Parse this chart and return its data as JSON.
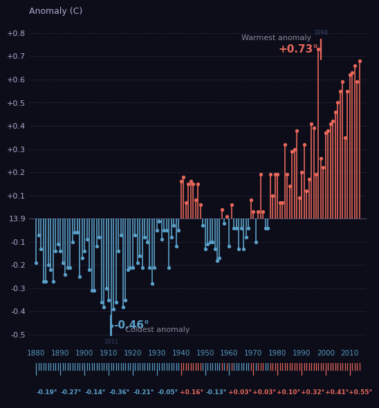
{
  "title": "Anomaly (C)",
  "background_color": "#1a1a2e",
  "plot_bg": "#0d0d1a",
  "years": [
    1880,
    1881,
    1882,
    1883,
    1884,
    1885,
    1886,
    1887,
    1888,
    1889,
    1890,
    1891,
    1892,
    1893,
    1894,
    1895,
    1896,
    1897,
    1898,
    1899,
    1900,
    1901,
    1902,
    1903,
    1904,
    1905,
    1906,
    1907,
    1908,
    1909,
    1910,
    1911,
    1912,
    1913,
    1914,
    1915,
    1916,
    1917,
    1918,
    1919,
    1920,
    1921,
    1922,
    1923,
    1924,
    1925,
    1926,
    1927,
    1928,
    1929,
    1930,
    1931,
    1932,
    1933,
    1934,
    1935,
    1936,
    1937,
    1938,
    1939,
    1940,
    1941,
    1942,
    1943,
    1944,
    1945,
    1946,
    1947,
    1948,
    1949,
    1950,
    1951,
    1952,
    1953,
    1954,
    1955,
    1956,
    1957,
    1958,
    1959,
    1960,
    1961,
    1962,
    1963,
    1964,
    1965,
    1966,
    1967,
    1968,
    1969,
    1970,
    1971,
    1972,
    1973,
    1974,
    1975,
    1976,
    1977,
    1978,
    1979,
    1980,
    1981,
    1982,
    1983,
    1984,
    1985,
    1986,
    1987,
    1988,
    1989,
    1990,
    1991,
    1992,
    1993,
    1994,
    1995,
    1996,
    1997,
    1998,
    1999,
    2000,
    2001,
    2002,
    2003,
    2004,
    2005,
    2006,
    2007,
    2008,
    2009,
    2010,
    2011,
    2012,
    2013,
    2014
  ],
  "anomalies": [
    -0.19,
    -0.07,
    -0.13,
    -0.27,
    -0.27,
    -0.2,
    -0.22,
    -0.27,
    -0.14,
    -0.11,
    -0.14,
    -0.19,
    -0.24,
    -0.21,
    -0.21,
    -0.1,
    -0.06,
    -0.06,
    -0.25,
    -0.17,
    -0.14,
    -0.09,
    -0.22,
    -0.31,
    -0.31,
    -0.12,
    -0.08,
    -0.36,
    -0.38,
    -0.3,
    -0.35,
    -0.46,
    -0.39,
    -0.36,
    -0.14,
    -0.07,
    -0.38,
    -0.35,
    -0.22,
    -0.21,
    -0.21,
    -0.07,
    -0.19,
    -0.16,
    -0.21,
    -0.08,
    -0.1,
    -0.21,
    -0.28,
    -0.21,
    -0.05,
    -0.01,
    -0.09,
    -0.05,
    -0.05,
    -0.21,
    -0.08,
    -0.03,
    -0.12,
    -0.05,
    0.16,
    0.18,
    0.07,
    0.15,
    0.16,
    0.15,
    0.08,
    0.15,
    0.06,
    -0.03,
    -0.13,
    -0.11,
    -0.1,
    -0.1,
    -0.13,
    -0.18,
    -0.17,
    0.04,
    -0.02,
    0.01,
    -0.12,
    0.06,
    -0.04,
    -0.04,
    -0.13,
    -0.04,
    -0.13,
    -0.08,
    -0.04,
    0.08,
    0.03,
    -0.1,
    0.03,
    0.19,
    0.03,
    -0.04,
    -0.04,
    0.19,
    0.1,
    0.19,
    0.19,
    0.07,
    0.07,
    0.32,
    0.19,
    0.14,
    0.29,
    0.3,
    0.38,
    0.09,
    0.2,
    0.32,
    0.12,
    0.17,
    0.41,
    0.39,
    0.19,
    0.73,
    0.26,
    0.22,
    0.37,
    0.38,
    0.41,
    0.42,
    0.46,
    0.5,
    0.55,
    0.59,
    0.35,
    0.55,
    0.62,
    0.63,
    0.66,
    0.59,
    0.68
  ],
  "warm_color": "#e8685a",
  "cold_color": "#5aa0c8",
  "warm_year": 1998,
  "warm_val": 0.73,
  "cold_year": 1911,
  "cold_val": -0.46,
  "decade_labels": [
    "1880",
    "1890",
    "1900",
    "1910",
    "1920",
    "1930",
    "1940",
    "1950",
    "1960",
    "1970",
    "1980",
    "1990",
    "2000",
    "2010"
  ],
  "decade_avgs": [
    "-0.19°",
    "-0.27°",
    "-0.14°",
    "-0.36°",
    "-0.21°",
    "-0.05°",
    "+0.16°",
    "-0.13°",
    "+0.03°",
    "+0.03°",
    "+0.10°",
    "+0.32°",
    "+0.41°",
    "+0.55°"
  ],
  "ylim": [
    -0.55,
    0.85
  ],
  "yticks": [
    -0.5,
    -0.4,
    -0.3,
    -0.2,
    -0.1,
    0.0,
    0.1,
    0.2,
    0.3,
    0.4,
    0.5,
    0.6,
    0.7,
    0.8
  ],
  "ytick_labels": [
    "-0.5",
    "-0.4",
    "-0.3",
    "-0.2",
    "-0.1",
    "13.9",
    "+0.1",
    "+0.2",
    "+0.3",
    "+0.4",
    "+0.5",
    "+0.6",
    "+0.7",
    "+0.8"
  ]
}
